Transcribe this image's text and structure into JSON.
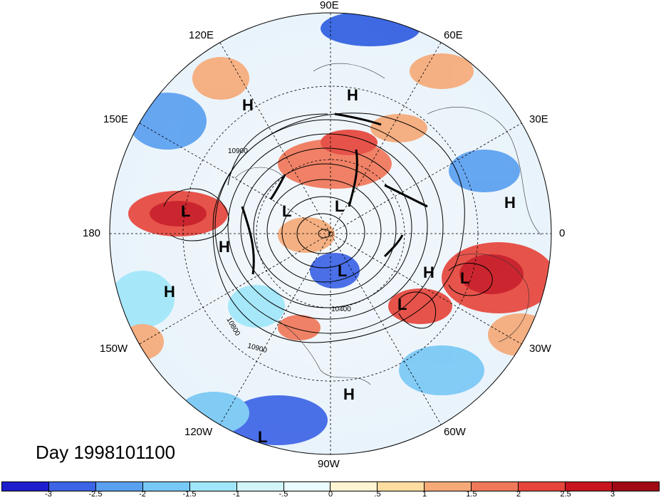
{
  "title": "Day 1998101100",
  "longitude_labels": {
    "e90": "90E",
    "e60": "60E",
    "e120": "120E",
    "e150": "150E",
    "e30": "30E",
    "zero": "0",
    "w180": "180",
    "w150": "150W",
    "w30": "30W",
    "w120": "120W",
    "w60": "60W",
    "w90": "90W"
  },
  "contour_labels": {
    "c1": "10900",
    "c2": "10800",
    "c3": "10400",
    "c4": "10900"
  },
  "pressure_centers": {
    "h1": "H",
    "h2": "H",
    "h3": "H",
    "h4": "H",
    "h5": "H",
    "h6": "H",
    "h7": "H",
    "l1": "L",
    "l2": "L",
    "l3": "L",
    "l4": "L",
    "l5": "L",
    "l6": "L",
    "l7": "L"
  },
  "colorbar": {
    "ticks": [
      "-3",
      "-2.5",
      "-2",
      "-1.5",
      "-1",
      "-.5",
      "0",
      ".5",
      "1",
      "1.5",
      "2",
      "2.5",
      "3"
    ],
    "colors": [
      "#1e1ecd",
      "#3c64e6",
      "#5aa0f0",
      "#78c8f5",
      "#a0e6fa",
      "#d2f5fa",
      "#eafcff",
      "#fff5d2",
      "#ffdca0",
      "#f5aa78",
      "#f0785a",
      "#e6463c",
      "#c8141e",
      "#a00a14"
    ]
  }
}
